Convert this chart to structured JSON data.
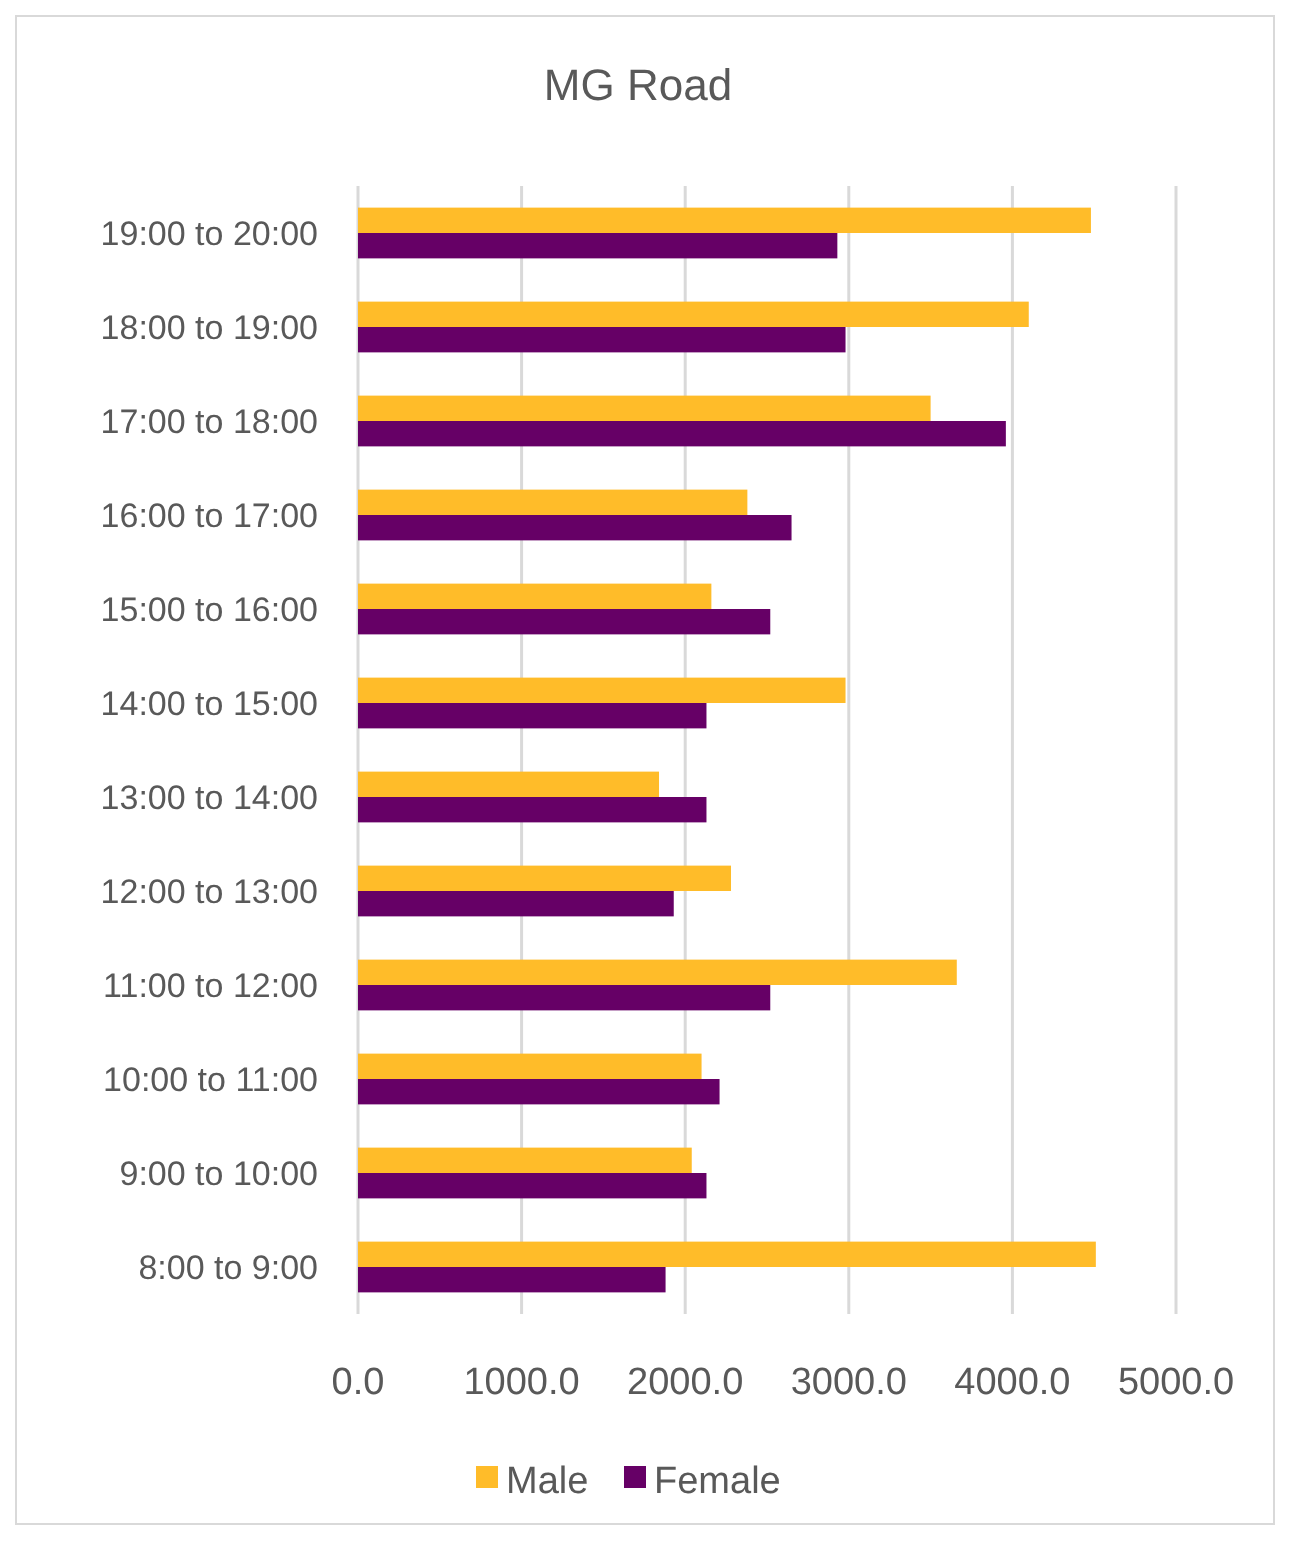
{
  "chart_data": {
    "type": "bar",
    "orientation": "horizontal",
    "title": "MG Road",
    "categories": [
      "19:00 to 20:00",
      "18:00 to 19:00",
      "17:00 to 18:00",
      "16:00 to 17:00",
      "15:00 to 16:00",
      "14:00 to 15:00",
      "13:00 to 14:00",
      "12:00 to 13:00",
      "11:00 to 12:00",
      "10:00 to 11:00",
      "9:00 to 10:00",
      "8:00 to 9:00"
    ],
    "series": [
      {
        "name": "Male",
        "color": "#ffbc29",
        "values": [
          4480,
          4100,
          3500,
          2380,
          2160,
          2980,
          1840,
          2280,
          3660,
          2100,
          2040,
          4510
        ]
      },
      {
        "name": "Female",
        "color": "#660066",
        "values": [
          2930,
          2980,
          3960,
          2650,
          2520,
          2130,
          2130,
          1930,
          2520,
          2210,
          2130,
          1880
        ]
      }
    ],
    "xlim": [
      0,
      5000
    ],
    "xticks": [
      {
        "value": 0,
        "label": "0.0"
      },
      {
        "value": 1000,
        "label": "1000.0"
      },
      {
        "value": 2000,
        "label": "2000.0"
      },
      {
        "value": 3000,
        "label": "3000.0"
      },
      {
        "value": 4000,
        "label": "4000.0"
      },
      {
        "value": 5000,
        "label": "5000.0"
      }
    ],
    "grid": "x",
    "legend": "bottom"
  }
}
